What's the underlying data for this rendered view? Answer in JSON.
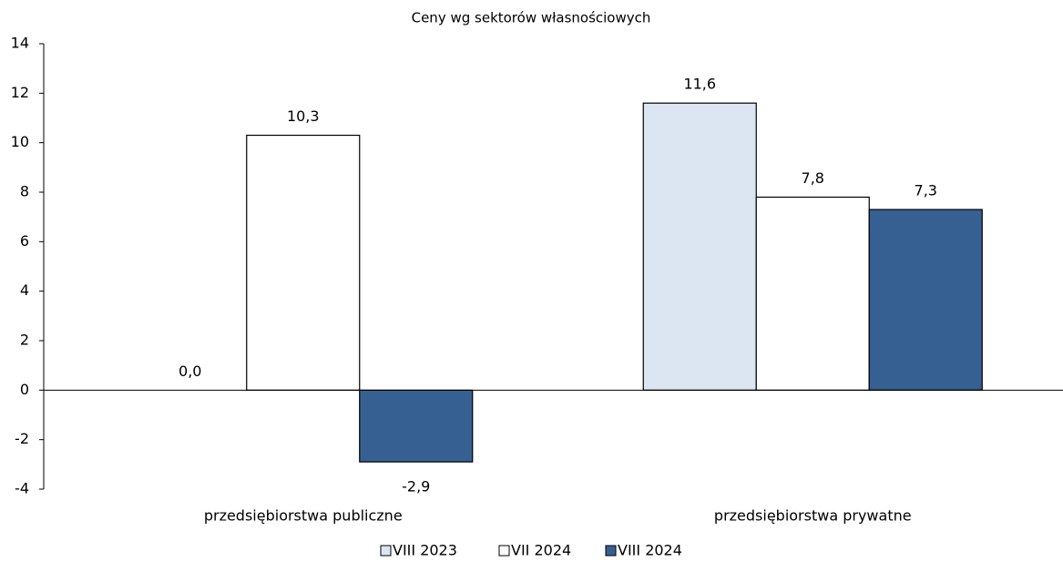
{
  "chart_data": {
    "type": "bar",
    "title": "Ceny wg sektorów własnościowych",
    "categories": [
      "przedsiębiorstwa publiczne",
      "przedsiębiorstwa prywatne"
    ],
    "series": [
      {
        "name": "VIII 2023",
        "color": "#dce6f2",
        "values": [
          0.0,
          11.6
        ],
        "value_labels": [
          "0,0",
          "11,6"
        ]
      },
      {
        "name": "VII 2024",
        "color": "#ffffff",
        "values": [
          10.3,
          7.8
        ],
        "value_labels": [
          "10,3",
          "7,8"
        ]
      },
      {
        "name": "VIII 2024",
        "color": "#376092",
        "values": [
          -2.9,
          7.3
        ],
        "value_labels": [
          "-2,9",
          "7,3"
        ]
      }
    ],
    "ylim": [
      -4,
      14
    ],
    "yticks": [
      -4,
      -2,
      0,
      2,
      4,
      6,
      8,
      10,
      12,
      14
    ],
    "legend": "bottom"
  }
}
